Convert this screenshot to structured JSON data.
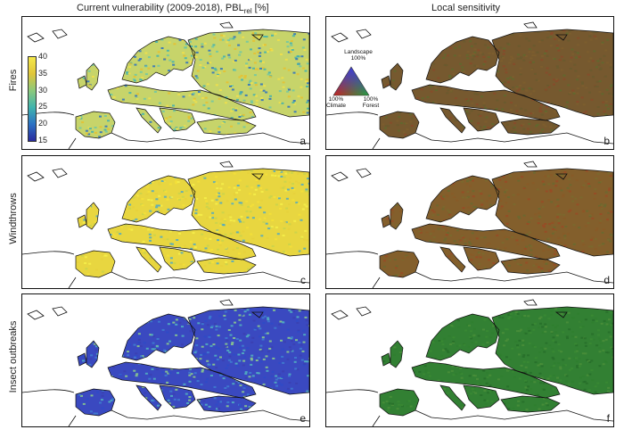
{
  "header": {
    "left_title_main": "Current vulnerability (2009-2018), PBL",
    "left_title_sub": "rel",
    "left_title_unit": " [%]",
    "right_title": "Local sensitivity"
  },
  "rows": [
    {
      "label": "Fires"
    },
    {
      "label": "Windthrows"
    },
    {
      "label": "Insect outbreaks"
    }
  ],
  "panels": [
    {
      "letter": "a",
      "kind": "vulnerability",
      "hazard": "fires",
      "palette": [
        "#f2e04a",
        "#e8c02e",
        "#6fc7a4",
        "#3fb0b0",
        "#2a6fc2"
      ],
      "dominant": "#c7d46a"
    },
    {
      "letter": "b",
      "kind": "sensitivity",
      "hazard": "fires",
      "palette": [
        "#7e5e2e",
        "#6a5a2e",
        "#8a4a2a",
        "#5f6a2e"
      ],
      "dominant": "#76592f"
    },
    {
      "letter": "c",
      "kind": "vulnerability",
      "hazard": "windthrows",
      "palette": [
        "#f4e038",
        "#e6d13c",
        "#c8d44c",
        "#4fa9c4",
        "#f6f04a"
      ],
      "dominant": "#e8d640"
    },
    {
      "letter": "d",
      "kind": "sensitivity",
      "hazard": "windthrows",
      "palette": [
        "#8a5a28",
        "#7a6a2e",
        "#9a4a26",
        "#6a6a30"
      ],
      "dominant": "#835f2c"
    },
    {
      "letter": "e",
      "kind": "vulnerability",
      "hazard": "insect outbreaks",
      "palette": [
        "#3b3fb0",
        "#2e4ac8",
        "#3f7ed0",
        "#52b4c0",
        "#8fd08a"
      ],
      "dominant": "#3a49c0"
    },
    {
      "letter": "f",
      "kind": "sensitivity",
      "hazard": "insect outbreaks",
      "palette": [
        "#2f7f2f",
        "#3a8a34",
        "#276f2a",
        "#4a8e3a"
      ],
      "dominant": "#328033"
    }
  ],
  "colorbar": {
    "ticks": [
      "40",
      "35",
      "30",
      "25",
      "20",
      "15"
    ],
    "range": [
      15,
      40
    ],
    "colors": [
      "#f5e94a",
      "#e0c53a",
      "#8cc97c",
      "#3fb4ae",
      "#2c72c4",
      "#2a2a9e"
    ]
  },
  "ternary_legend": {
    "top": "Landscape\n100%",
    "left": "100%\nClimate",
    "right": "100%\nForest",
    "colors": {
      "top": "#3c3cdc",
      "left": "#cc2020",
      "right": "#20a040"
    }
  }
}
